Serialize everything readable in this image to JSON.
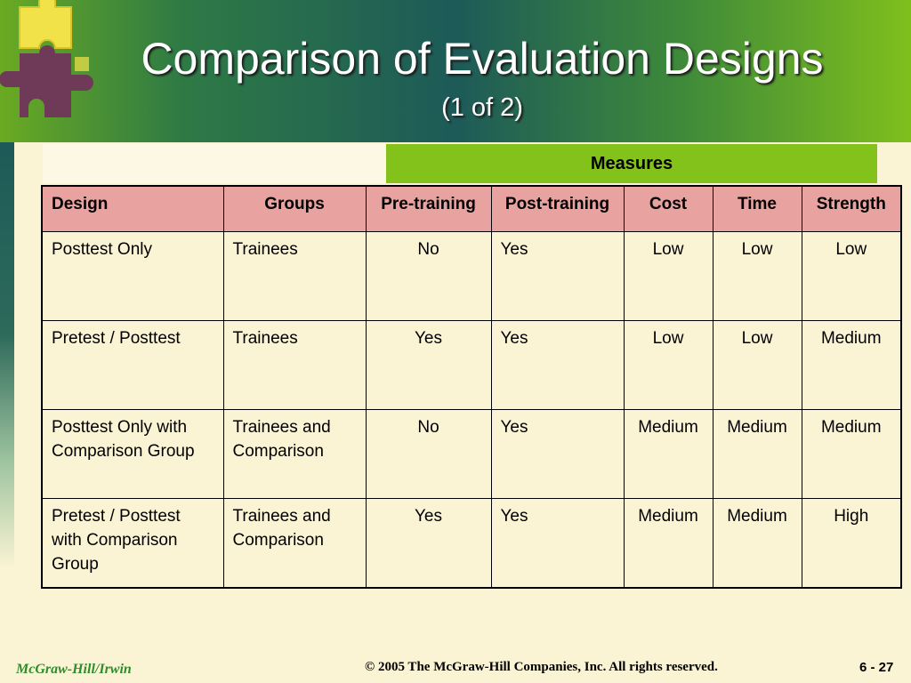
{
  "slide": {
    "title": "Comparison of Evaluation Designs",
    "subtitle": "(1 of 2)"
  },
  "table": {
    "group_header": "Measures",
    "columns": [
      "Design",
      "Groups",
      "Pre-training",
      "Post-training",
      "Cost",
      "Time",
      "Strength"
    ],
    "rows": [
      [
        "Posttest Only",
        "Trainees",
        "No",
        "Yes",
        "Low",
        "Low",
        "Low"
      ],
      [
        "Pretest / Posttest",
        "Trainees",
        "Yes",
        "Yes",
        "Low",
        "Low",
        "Medium"
      ],
      [
        "Posttest Only with Comparison Group",
        "Trainees and Comparison",
        "No",
        "Yes",
        "Medium",
        "Medium",
        "Medium"
      ],
      [
        "Pretest / Posttest with Comparison Group",
        "Trainees and Comparison",
        "Yes",
        "Yes",
        "Medium",
        "Medium",
        "High"
      ]
    ]
  },
  "footer": {
    "publisher": "McGraw-Hill/Irwin",
    "copyright": "© 2005 The McGraw-Hill Companies, Inc. All rights reserved.",
    "page_number": "6 - 27"
  },
  "colors": {
    "header_row": "#e8a3a0",
    "measures_band": "#83c21a",
    "background": "#fbf4d4",
    "footer_logo": "#2f8c2c"
  },
  "icons": [
    "puzzle-pieces-icon"
  ]
}
